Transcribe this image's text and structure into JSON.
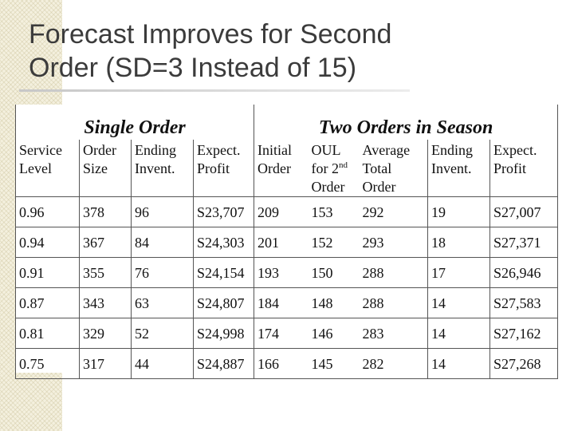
{
  "slide": {
    "title_line1": "Forecast Improves for Second",
    "title_line2": "Order (SD=3 Instead of 15)"
  },
  "table": {
    "group_headers": {
      "single": "Single Order",
      "two": "Two Orders in Season"
    },
    "columns": [
      {
        "line1": "Service",
        "line2": "Level"
      },
      {
        "line1": "Order",
        "line2": "Size"
      },
      {
        "line1": "Ending",
        "line2": "Invent."
      },
      {
        "line1": "Expect.",
        "line2": "Profit"
      },
      {
        "line1": "Initial",
        "line2": "Order"
      },
      {
        "line1": "OUL",
        "line2": "for 2",
        "line2_sup": "nd",
        "line3": "Order"
      },
      {
        "line1": "Average",
        "line2": "Total",
        "line3": "Order"
      },
      {
        "line1": "Ending",
        "line2": "Invent."
      },
      {
        "line1": "Expect.",
        "line2": "Profit"
      }
    ],
    "rows": [
      [
        "0.96",
        "378",
        "96",
        "S23,707",
        "209",
        "153",
        "292",
        "19",
        "S27,007"
      ],
      [
        "0.94",
        "367",
        "84",
        "S24,303",
        "201",
        "152",
        "293",
        "18",
        "S27,371"
      ],
      [
        "0.91",
        "355",
        "76",
        "S24,154",
        "193",
        "150",
        "288",
        "17",
        "S26,946"
      ],
      [
        "0.87",
        "343",
        "63",
        "S24,807",
        "184",
        "148",
        "288",
        "14",
        "S27,583"
      ],
      [
        "0.81",
        "329",
        "52",
        "S24,998",
        "174",
        "146",
        "283",
        "14",
        "S27,162"
      ],
      [
        "0.75",
        "317",
        "44",
        "S24,887",
        "166",
        "145",
        "282",
        "14",
        "S27,268"
      ]
    ]
  }
}
